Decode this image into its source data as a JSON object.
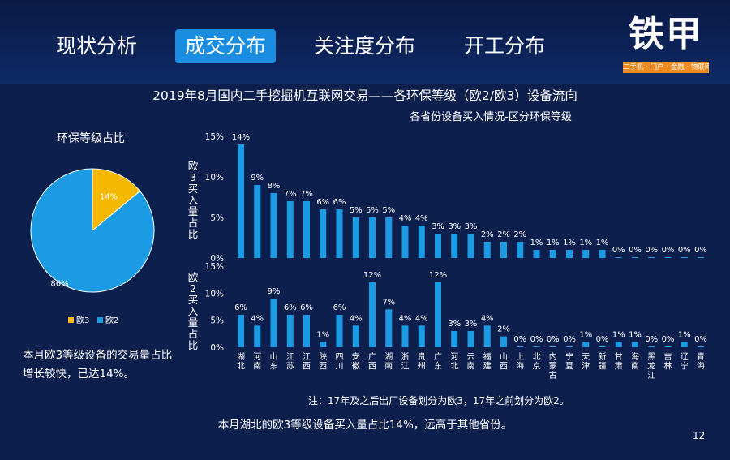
{
  "nav": {
    "tabs": [
      "现状分析",
      "成交分布",
      "关注度分布",
      "开工分布"
    ],
    "active_index": 1
  },
  "logo": {
    "name": "铁甲",
    "tagline": "二手机 · 门户 · 金融 · 物联网"
  },
  "page_title": "2019年8月国内二手挖掘机互联网交易——各环保等级（欧2/欧3）设备流向",
  "subtitle": "各省份设备买入情况-区分环保等级",
  "colors": {
    "background": "#0d1f4d",
    "bar": "#1b9be3",
    "pie_euro3": "#f5b800",
    "pie_euro2": "#1b9be3",
    "active_tab": "#1b8de0",
    "logo_accent": "#f08a1c"
  },
  "pie": {
    "title": "环保等级占比",
    "slices": [
      {
        "name": "欧3",
        "value": 14,
        "label": "14%"
      },
      {
        "name": "欧2",
        "value": 86,
        "label": "86%"
      }
    ],
    "note": "本月欧3等级设备的交易量占比增长较快，已达14%。"
  },
  "chart_data": [
    {
      "type": "bar",
      "ylabel": "欧3买入量占比",
      "ylim": [
        0,
        15
      ],
      "yticks": [
        "0%",
        "5%",
        "10%",
        "15%"
      ],
      "categories": [
        "湖北",
        "河南",
        "山东",
        "江苏",
        "江西",
        "陕西",
        "四川",
        "安徽",
        "广西",
        "湖南",
        "浙江",
        "贵州",
        "广东",
        "河北",
        "云南",
        "福建",
        "山西",
        "上海",
        "北京",
        "内蒙古",
        "宁夏",
        "天津",
        "新疆",
        "甘肃",
        "海南",
        "黑龙江",
        "吉林",
        "辽宁",
        "青海"
      ],
      "values": [
        14,
        9,
        8,
        7,
        7,
        6,
        6,
        5,
        5,
        5,
        4,
        4,
        3,
        3,
        3,
        2,
        2,
        2,
        1,
        1,
        1,
        1,
        1,
        0,
        0,
        0,
        0,
        0,
        0
      ],
      "labels": [
        "14%",
        "9%",
        "8%",
        "7%",
        "7%",
        "6%",
        "6%",
        "5%",
        "5%",
        "5%",
        "4%",
        "4%",
        "3%",
        "3%",
        "3%",
        "2%",
        "2%",
        "2%",
        "1%",
        "1%",
        "1%",
        "1%",
        "1%",
        "0%",
        "0%",
        "0%",
        "0%",
        "0%",
        "0%"
      ]
    },
    {
      "type": "bar",
      "ylabel": "欧2买入量占比",
      "ylim": [
        0,
        15
      ],
      "yticks": [
        "0%",
        "5%",
        "10%",
        "15%"
      ],
      "categories": [
        "湖北",
        "河南",
        "山东",
        "江苏",
        "江西",
        "陕西",
        "四川",
        "安徽",
        "广西",
        "湖南",
        "浙江",
        "贵州",
        "广东",
        "河北",
        "云南",
        "福建",
        "山西",
        "上海",
        "北京",
        "内蒙古",
        "宁夏",
        "天津",
        "新疆",
        "甘肃",
        "海南",
        "黑龙江",
        "吉林",
        "辽宁",
        "青海"
      ],
      "values": [
        6,
        4,
        9,
        6,
        6,
        1,
        6,
        4,
        12,
        7,
        4,
        4,
        12,
        3,
        3,
        4,
        2,
        0,
        0,
        0,
        0,
        1,
        0,
        1,
        1,
        0,
        0,
        1,
        0
      ],
      "labels": [
        "6%",
        "4%",
        "9%",
        "6%",
        "6%",
        "1%",
        "6%",
        "4%",
        "12%",
        "7%",
        "4%",
        "4%",
        "12%",
        "3%",
        "3%",
        "4%",
        "2%",
        "0%",
        "0%",
        "0%",
        "0%",
        "1%",
        "0%",
        "1%",
        "1%",
        "0%",
        "0%",
        "1%",
        "0%"
      ]
    }
  ],
  "footnote": "注：17年及之后出厂设备划分为欧3，17年之前划分为欧2。",
  "conclusion": "本月湖北的欧3等级设备买入量占比14%，远高于其他省份。",
  "page_number": "12"
}
